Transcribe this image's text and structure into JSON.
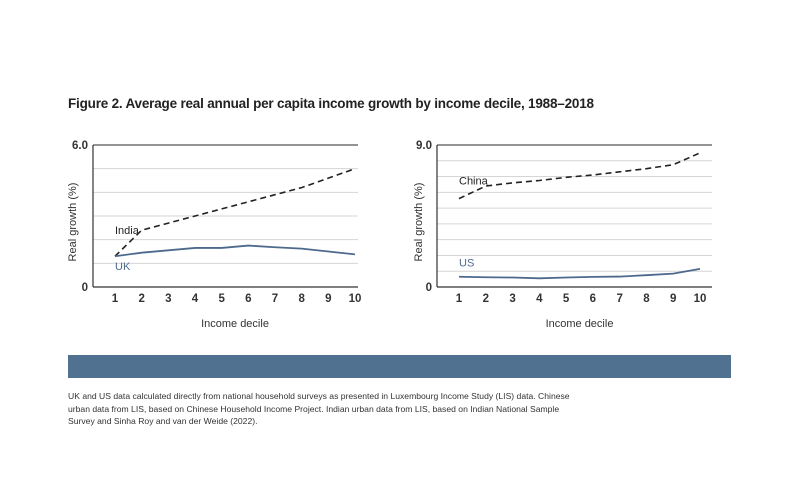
{
  "figure": {
    "title": "Figure 2. Average real annual per capita income growth by income decile, 1988–2018",
    "source_note": "UK and US data calculated directly from national household surveys as presented in Luxembourg Income Study (LIS) data. Chinese urban data from LIS, based on Chinese Household Income Project. Indian urban data from LIS, based on Indian National Sample Survey and Sinha Roy and van der Weide (2022)."
  },
  "colors": {
    "uk_us_line": "#4d6a8d",
    "india_china_line": "#222222",
    "band": "#517190",
    "grid": "#d5d5d5"
  },
  "chart_data": [
    {
      "type": "line",
      "xlabel": "Income decile",
      "ylabel": "Real growth (%)",
      "ylim": [
        0,
        6.0
      ],
      "y_ticks": [
        "0",
        "6.0"
      ],
      "x": [
        1,
        2,
        3,
        4,
        5,
        6,
        7,
        8,
        9,
        10
      ],
      "grid": true,
      "series": [
        {
          "name": "India",
          "style": "dashed",
          "values": [
            1.3,
            2.4,
            2.7,
            3.0,
            3.3,
            3.6,
            3.9,
            4.2,
            4.6,
            5.0
          ]
        },
        {
          "name": "UK",
          "style": "solid",
          "values": [
            1.3,
            1.45,
            1.55,
            1.65,
            1.65,
            1.75,
            1.68,
            1.62,
            1.5,
            1.38
          ]
        }
      ]
    },
    {
      "type": "line",
      "xlabel": "Income decile",
      "ylabel": "Real growth (%)",
      "ylim": [
        0,
        9.0
      ],
      "y_ticks": [
        "0",
        "9.0"
      ],
      "x": [
        1,
        2,
        3,
        4,
        5,
        6,
        7,
        8,
        9,
        10
      ],
      "grid": true,
      "series": [
        {
          "name": "China",
          "style": "dashed",
          "values": [
            5.6,
            6.4,
            6.6,
            6.75,
            6.95,
            7.1,
            7.3,
            7.5,
            7.75,
            8.5
          ]
        },
        {
          "name": "US",
          "style": "solid",
          "values": [
            0.65,
            0.62,
            0.6,
            0.55,
            0.6,
            0.64,
            0.66,
            0.75,
            0.85,
            1.15
          ]
        }
      ]
    }
  ]
}
